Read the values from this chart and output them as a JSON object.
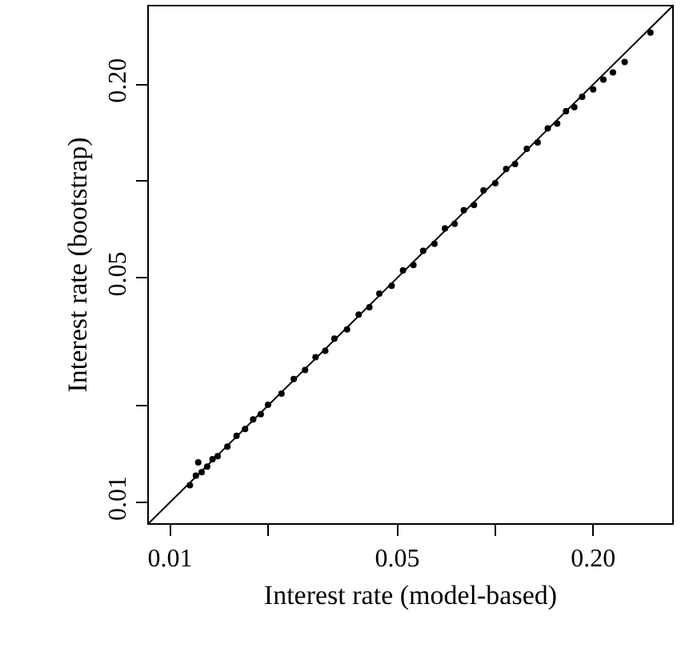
{
  "chart_data": {
    "type": "scatter",
    "xlabel": "Interest rate (model-based)",
    "ylabel": "Interest rate (bootstrap)",
    "log": "xy",
    "marker": "circle",
    "xlim": [
      0.0086,
      0.35
    ],
    "ylim": [
      0.0086,
      0.35
    ],
    "xticks": [
      0.01,
      {
        "value": 0.02,
        "label": null
      },
      0.05,
      {
        "value": 0.1,
        "label": null
      },
      {
        "value": 0.2,
        "label": "0.20"
      }
    ],
    "yticks": [
      0.01,
      {
        "value": 0.02,
        "label": null
      },
      0.05,
      {
        "value": 0.1,
        "label": null
      },
      {
        "value": 0.2,
        "label": "0.20"
      }
    ],
    "series": [
      {
        "color": "#000000",
        "x": [
          0.0115,
          0.012,
          0.0122,
          0.0125,
          0.013,
          0.0135,
          0.014,
          0.015,
          0.016,
          0.017,
          0.018,
          0.019,
          0.02,
          0.022,
          0.024,
          0.026,
          0.028,
          0.03,
          0.032,
          0.035,
          0.038,
          0.041,
          0.044,
          0.048,
          0.052,
          0.056,
          0.06,
          0.065,
          0.07,
          0.075,
          0.08,
          0.086,
          0.092,
          0.1,
          0.108,
          0.115,
          0.125,
          0.135,
          0.145,
          0.155,
          0.165,
          0.175,
          0.185,
          0.2,
          0.215,
          0.23,
          0.25,
          0.3
        ],
        "values": [
          0.0113,
          0.0121,
          0.0133,
          0.0124,
          0.0129,
          0.0136,
          0.0139,
          0.0149,
          0.0161,
          0.0169,
          0.0181,
          0.0188,
          0.0201,
          0.0218,
          0.0242,
          0.0258,
          0.0283,
          0.0296,
          0.0323,
          0.0345,
          0.0384,
          0.0405,
          0.0446,
          0.0472,
          0.0527,
          0.0548,
          0.0607,
          0.0638,
          0.0712,
          0.0736,
          0.0812,
          0.0843,
          0.0935,
          0.0985,
          0.109,
          0.113,
          0.126,
          0.132,
          0.146,
          0.151,
          0.165,
          0.17,
          0.183,
          0.193,
          0.207,
          0.218,
          0.235,
          0.29
        ]
      },
      {
        "type": "line",
        "marker": "none",
        "color": "#000000",
        "x": [
          0.0086,
          0.35
        ],
        "values": [
          0.0086,
          0.35
        ]
      }
    ]
  }
}
